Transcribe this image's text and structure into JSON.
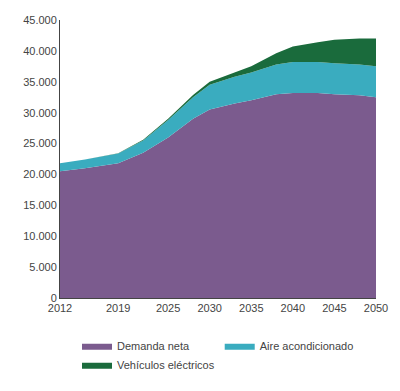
{
  "chart_data": {
    "type": "area",
    "stacked": true,
    "x": [
      2012,
      2015,
      2019,
      2022,
      2025,
      2028,
      2030,
      2033,
      2035,
      2038,
      2040,
      2043,
      2045,
      2048,
      2050
    ],
    "series": [
      {
        "name": "Demanda neta",
        "color": "#7B5B8E",
        "values": [
          20500,
          21000,
          21800,
          23500,
          26000,
          29000,
          30500,
          31500,
          32000,
          33000,
          33200,
          33200,
          33000,
          32800,
          32500
        ]
      },
      {
        "name": "Aire acondicionado",
        "color": "#3AACBF",
        "values": [
          1300,
          1400,
          1600,
          2000,
          2800,
          3500,
          4000,
          4300,
          4500,
          4800,
          5000,
          5000,
          5000,
          5000,
          5000
        ]
      },
      {
        "name": "Vehículos eléctricos",
        "color": "#1A6B3C",
        "values": [
          0,
          0,
          50,
          100,
          200,
          350,
          500,
          700,
          1000,
          1800,
          2500,
          3200,
          3800,
          4200,
          4500
        ]
      }
    ],
    "xlim": [
      2012,
      2050
    ],
    "xticks": [
      2012,
      2019,
      2025,
      2030,
      2035,
      2040,
      2045,
      2050
    ],
    "ylim": [
      0,
      45000
    ],
    "yticks": [
      0,
      {
        "value": 5000,
        "label": "5.000"
      },
      {
        "value": 10000,
        "label": "10.000"
      },
      {
        "value": 15000,
        "label": "15.000"
      },
      {
        "value": 20000,
        "label": "20.000"
      },
      {
        "value": 25000,
        "label": "25.000"
      },
      {
        "value": 30000,
        "label": "30.000"
      },
      {
        "value": 35000,
        "label": "35.000"
      },
      {
        "value": 40000,
        "label": "40.000"
      },
      {
        "value": 45000,
        "label": "45.000"
      }
    ],
    "grid": false,
    "legend": "bottom"
  }
}
